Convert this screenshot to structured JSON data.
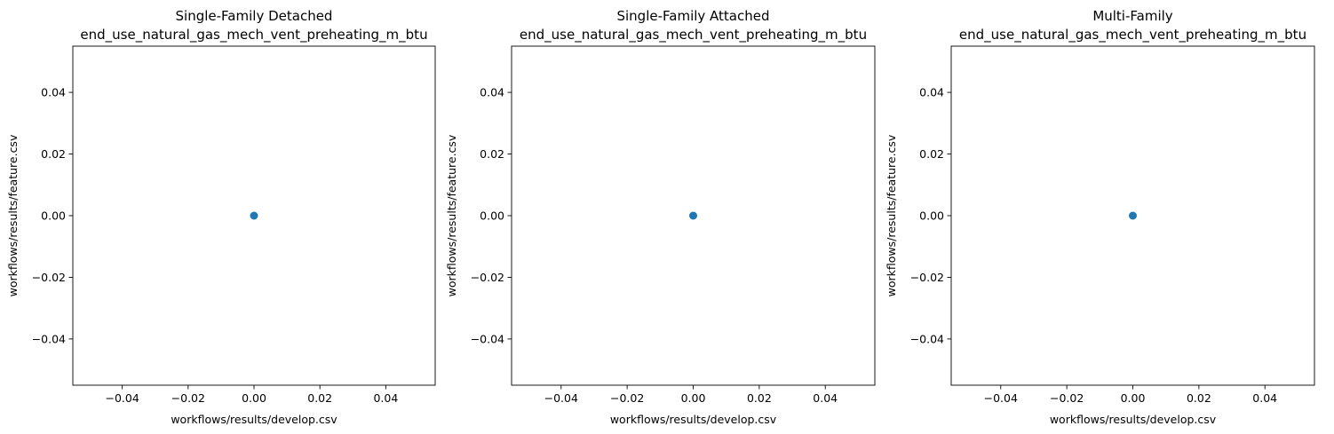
{
  "figure": {
    "marker_color": "#1f77b4"
  },
  "chart_data": [
    {
      "type": "scatter",
      "title": [
        "Single-Family Detached",
        "end_use_natural_gas_mech_vent_preheating_m_btu"
      ],
      "xlabel": "workflows/results/develop.csv",
      "ylabel": "workflows/results/feature.csv",
      "xlim": [
        -0.055,
        0.055
      ],
      "ylim": [
        -0.055,
        0.055
      ],
      "xticks": [
        -0.04,
        -0.02,
        0.0,
        0.02,
        0.04
      ],
      "yticks": [
        -0.04,
        -0.02,
        0.0,
        0.02,
        0.04
      ],
      "xtick_labels": [
        "−0.04",
        "−0.02",
        "0.00",
        "0.02",
        "0.04"
      ],
      "ytick_labels": [
        "−0.04",
        "−0.02",
        "0.00",
        "0.02",
        "0.04"
      ],
      "grid": false,
      "points": [
        {
          "x": 0.0,
          "y": 0.0
        }
      ]
    },
    {
      "type": "scatter",
      "title": [
        "Single-Family Attached",
        "end_use_natural_gas_mech_vent_preheating_m_btu"
      ],
      "xlabel": "workflows/results/develop.csv",
      "ylabel": "workflows/results/feature.csv",
      "xlim": [
        -0.055,
        0.055
      ],
      "ylim": [
        -0.055,
        0.055
      ],
      "xticks": [
        -0.04,
        -0.02,
        0.0,
        0.02,
        0.04
      ],
      "yticks": [
        -0.04,
        -0.02,
        0.0,
        0.02,
        0.04
      ],
      "xtick_labels": [
        "−0.04",
        "−0.02",
        "0.00",
        "0.02",
        "0.04"
      ],
      "ytick_labels": [
        "−0.04",
        "−0.02",
        "0.00",
        "0.02",
        "0.04"
      ],
      "grid": false,
      "points": [
        {
          "x": 0.0,
          "y": 0.0
        }
      ]
    },
    {
      "type": "scatter",
      "title": [
        "Multi-Family",
        "end_use_natural_gas_mech_vent_preheating_m_btu"
      ],
      "xlabel": "workflows/results/develop.csv",
      "ylabel": "workflows/results/feature.csv",
      "xlim": [
        -0.055,
        0.055
      ],
      "ylim": [
        -0.055,
        0.055
      ],
      "xticks": [
        -0.04,
        -0.02,
        0.0,
        0.02,
        0.04
      ],
      "yticks": [
        -0.04,
        -0.02,
        0.0,
        0.02,
        0.04
      ],
      "xtick_labels": [
        "−0.04",
        "−0.02",
        "0.00",
        "0.02",
        "0.04"
      ],
      "ytick_labels": [
        "−0.04",
        "−0.02",
        "0.00",
        "0.02",
        "0.04"
      ],
      "grid": false,
      "points": [
        {
          "x": 0.0,
          "y": 0.0
        }
      ]
    }
  ]
}
